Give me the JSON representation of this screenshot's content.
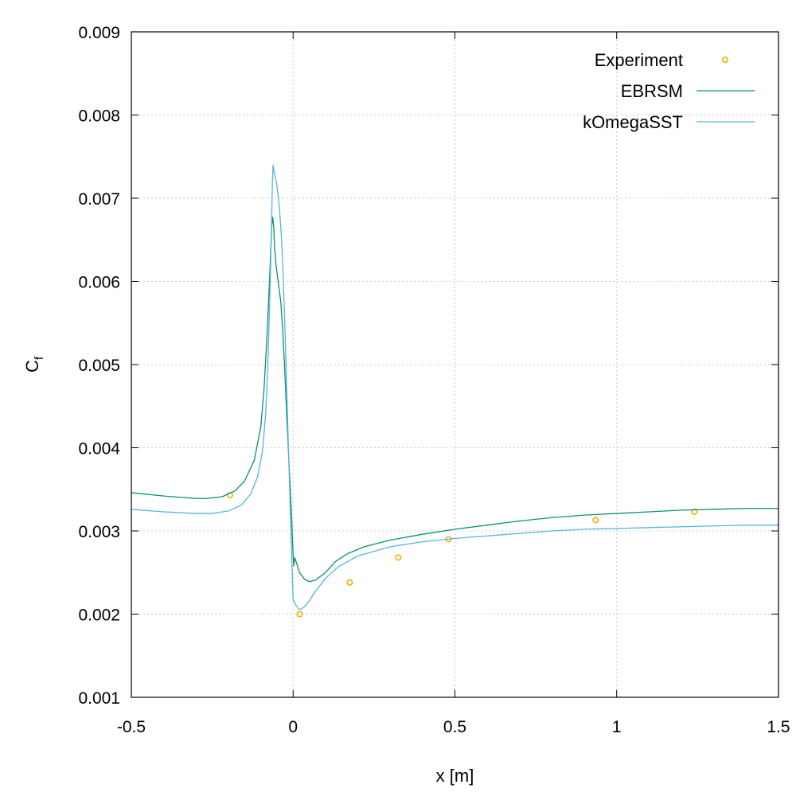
{
  "chart_data": {
    "type": "line",
    "xlabel": "x [m]",
    "ylabel": {
      "main": "C",
      "sub": "f"
    },
    "xlim": [
      -0.5,
      1.5
    ],
    "ylim": [
      0.001,
      0.009
    ],
    "xticks": [
      -0.5,
      0,
      0.5,
      1,
      1.5
    ],
    "xtick_labels": [
      "-0.5",
      "0",
      "0.5",
      "1",
      "1.5"
    ],
    "yticks": [
      0.001,
      0.002,
      0.003,
      0.004,
      0.005,
      0.006,
      0.007,
      0.008,
      0.009
    ],
    "ytick_labels": [
      "0.001",
      "0.002",
      "0.003",
      "0.004",
      "0.005",
      "0.006",
      "0.007",
      "0.008",
      "0.009"
    ],
    "grid": true,
    "legend_position": "top-right",
    "series": [
      {
        "name": "Experiment",
        "kind": "scatter",
        "color": "#f0b000",
        "points": [
          [
            -0.195,
            0.00343
          ],
          [
            0.02,
            0.002
          ],
          [
            0.175,
            0.00238
          ],
          [
            0.325,
            0.00268
          ],
          [
            0.48,
            0.0029
          ],
          [
            0.935,
            0.00313
          ],
          [
            1.24,
            0.00323
          ]
        ]
      },
      {
        "name": "EBRSM",
        "kind": "line",
        "color": "#0a9070",
        "points": [
          [
            -0.5,
            0.00346
          ],
          [
            -0.4,
            0.00342
          ],
          [
            -0.3,
            0.00339
          ],
          [
            -0.27,
            0.00339
          ],
          [
            -0.22,
            0.00341
          ],
          [
            -0.18,
            0.00348
          ],
          [
            -0.15,
            0.0036
          ],
          [
            -0.12,
            0.00385
          ],
          [
            -0.1,
            0.00425
          ],
          [
            -0.09,
            0.0047
          ],
          [
            -0.08,
            0.0054
          ],
          [
            -0.072,
            0.0061
          ],
          [
            -0.066,
            0.00667
          ],
          [
            -0.063,
            0.00677
          ],
          [
            -0.06,
            0.00665
          ],
          [
            -0.057,
            0.0064
          ],
          [
            -0.053,
            0.0062
          ],
          [
            -0.048,
            0.00605
          ],
          [
            -0.043,
            0.0059
          ],
          [
            -0.038,
            0.00575
          ],
          [
            -0.032,
            0.0054
          ],
          [
            -0.026,
            0.00495
          ],
          [
            -0.02,
            0.0044
          ],
          [
            -0.015,
            0.004
          ],
          [
            -0.01,
            0.0036
          ],
          [
            -0.005,
            0.0032
          ],
          [
            0.0,
            0.0027
          ],
          [
            0.002,
            0.00258
          ],
          [
            0.005,
            0.00268
          ],
          [
            0.01,
            0.00262
          ],
          [
            0.02,
            0.0025
          ],
          [
            0.035,
            0.00242
          ],
          [
            0.05,
            0.00239
          ],
          [
            0.07,
            0.00241
          ],
          [
            0.1,
            0.0025
          ],
          [
            0.13,
            0.00263
          ],
          [
            0.17,
            0.00273
          ],
          [
            0.22,
            0.00281
          ],
          [
            0.3,
            0.00289
          ],
          [
            0.4,
            0.00296
          ],
          [
            0.5,
            0.00302
          ],
          [
            0.6,
            0.00307
          ],
          [
            0.7,
            0.00312
          ],
          [
            0.8,
            0.00316
          ],
          [
            0.9,
            0.00319
          ],
          [
            1.0,
            0.00321
          ],
          [
            1.1,
            0.00323
          ],
          [
            1.2,
            0.00325
          ],
          [
            1.3,
            0.00326
          ],
          [
            1.4,
            0.00327
          ],
          [
            1.5,
            0.00327
          ]
        ]
      },
      {
        "name": "kOmegaSST",
        "kind": "line",
        "color": "#56b4e0",
        "points": [
          [
            -0.5,
            0.00326
          ],
          [
            -0.4,
            0.00323
          ],
          [
            -0.3,
            0.00321
          ],
          [
            -0.25,
            0.00321
          ],
          [
            -0.2,
            0.00324
          ],
          [
            -0.16,
            0.00331
          ],
          [
            -0.13,
            0.00345
          ],
          [
            -0.11,
            0.00365
          ],
          [
            -0.095,
            0.00395
          ],
          [
            -0.085,
            0.0044
          ],
          [
            -0.078,
            0.005
          ],
          [
            -0.072,
            0.0058
          ],
          [
            -0.067,
            0.0066
          ],
          [
            -0.064,
            0.0072
          ],
          [
            -0.062,
            0.0074
          ],
          [
            -0.06,
            0.00735
          ],
          [
            -0.056,
            0.00725
          ],
          [
            -0.052,
            0.0072
          ],
          [
            -0.047,
            0.00705
          ],
          [
            -0.042,
            0.00685
          ],
          [
            -0.037,
            0.0066
          ],
          [
            -0.031,
            0.0061
          ],
          [
            -0.025,
            0.0054
          ],
          [
            -0.019,
            0.0046
          ],
          [
            -0.013,
            0.0038
          ],
          [
            -0.007,
            0.003
          ],
          [
            -0.002,
            0.0024
          ],
          [
            0.0,
            0.00218
          ],
          [
            0.005,
            0.00213
          ],
          [
            0.01,
            0.0021
          ],
          [
            0.018,
            0.00206
          ],
          [
            0.025,
            0.00206
          ],
          [
            0.035,
            0.00209
          ],
          [
            0.05,
            0.00216
          ],
          [
            0.07,
            0.00228
          ],
          [
            0.1,
            0.00243
          ],
          [
            0.14,
            0.00257
          ],
          [
            0.2,
            0.0027
          ],
          [
            0.3,
            0.00281
          ],
          [
            0.4,
            0.00287
          ],
          [
            0.5,
            0.00291
          ],
          [
            0.6,
            0.00294
          ],
          [
            0.7,
            0.00297
          ],
          [
            0.8,
            0.003
          ],
          [
            0.9,
            0.00302
          ],
          [
            1.0,
            0.00303
          ],
          [
            1.1,
            0.00304
          ],
          [
            1.2,
            0.00305
          ],
          [
            1.3,
            0.00306
          ],
          [
            1.4,
            0.00307
          ],
          [
            1.5,
            0.00307
          ]
        ]
      }
    ]
  }
}
